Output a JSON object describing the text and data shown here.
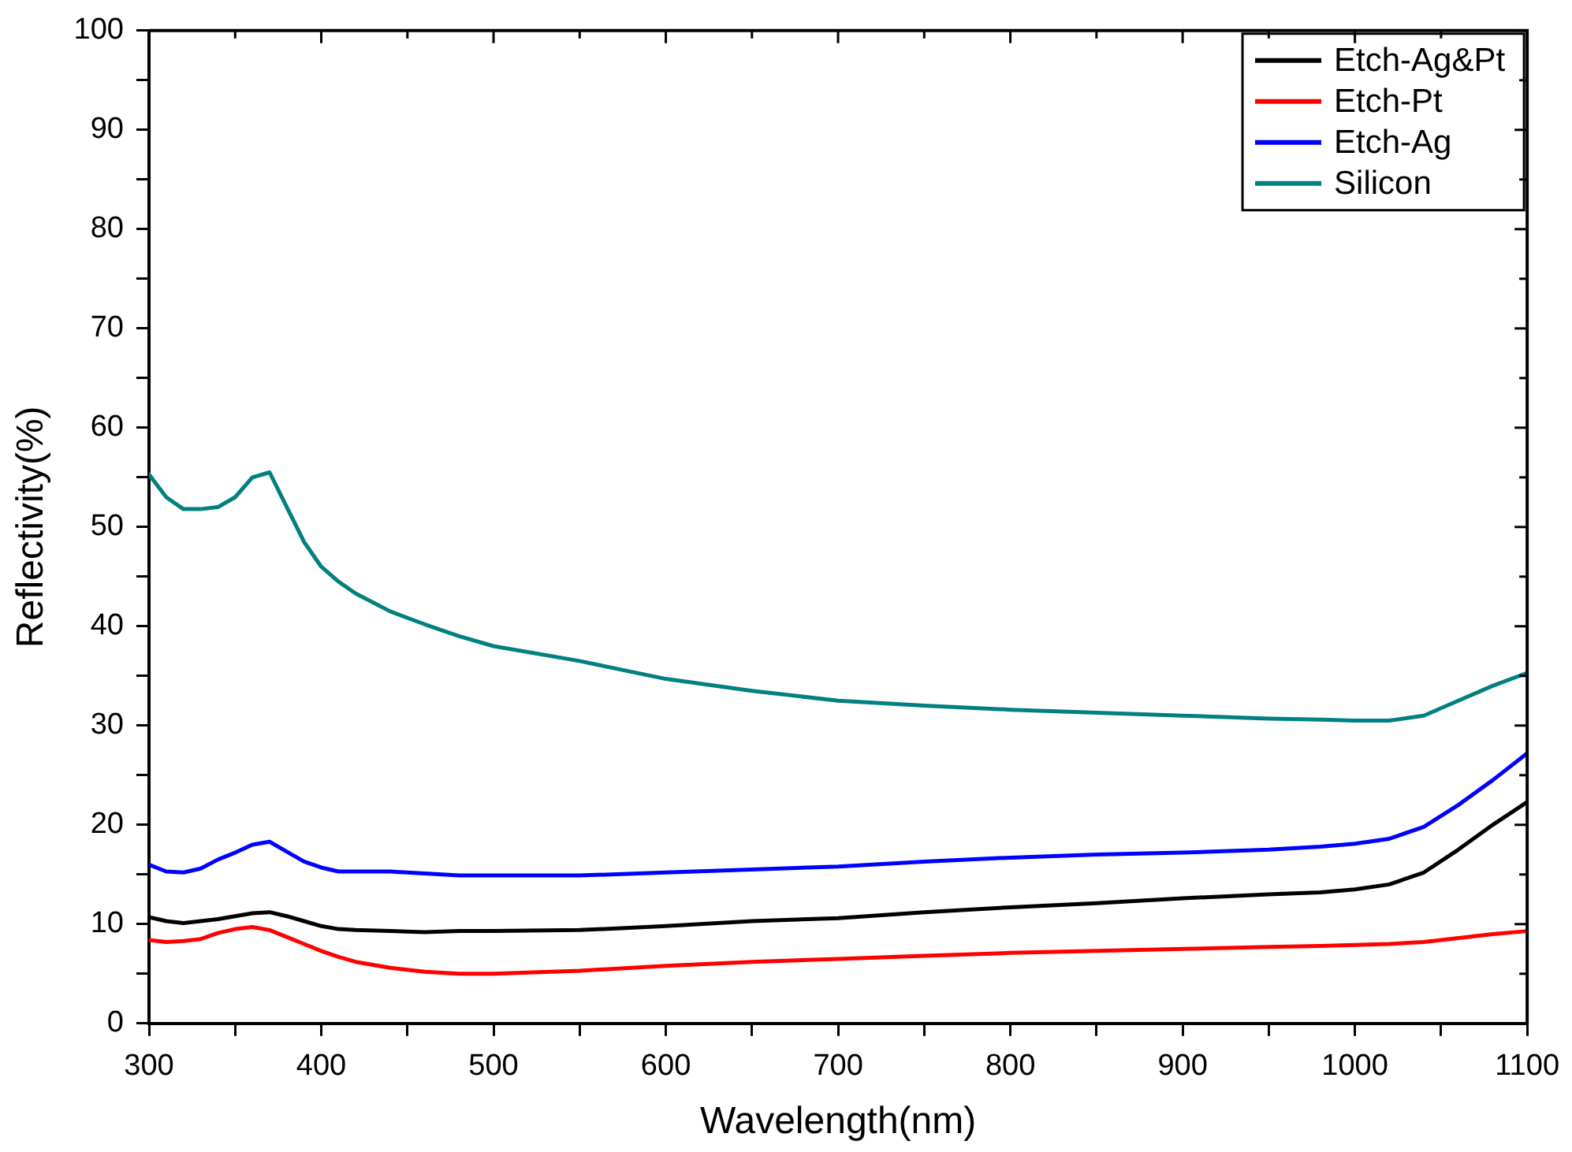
{
  "chart_data": {
    "type": "line",
    "xlabel": "Wavelength(nm)",
    "ylabel": "Reflectivity(%)",
    "x": [
      300,
      310,
      320,
      330,
      340,
      350,
      360,
      370,
      380,
      390,
      400,
      410,
      420,
      440,
      460,
      480,
      500,
      550,
      600,
      650,
      700,
      750,
      800,
      850,
      900,
      950,
      980,
      1000,
      1020,
      1040,
      1060,
      1080,
      1100
    ],
    "series": [
      {
        "name": "Etch-Ag&Pt",
        "color": "#000000",
        "values": [
          10.7,
          10.3,
          10.1,
          10.3,
          10.5,
          10.8,
          11.1,
          11.2,
          10.8,
          10.3,
          9.8,
          9.5,
          9.4,
          9.3,
          9.2,
          9.3,
          9.3,
          9.4,
          9.8,
          10.3,
          10.6,
          11.2,
          11.7,
          12.1,
          12.6,
          13,
          13.2,
          13.5,
          14,
          15.2,
          17.5,
          20,
          22.3
        ]
      },
      {
        "name": "Etch-Pt",
        "color": "#ff0000",
        "values": [
          8.4,
          8.2,
          8.3,
          8.5,
          9.1,
          9.5,
          9.7,
          9.4,
          8.7,
          8,
          7.3,
          6.7,
          6.2,
          5.6,
          5.2,
          5,
          5,
          5.3,
          5.8,
          6.2,
          6.5,
          6.8,
          7.1,
          7.3,
          7.5,
          7.7,
          7.8,
          7.9,
          8,
          8.2,
          8.6,
          9,
          9.3
        ]
      },
      {
        "name": "Etch-Ag",
        "color": "#0000ff",
        "values": [
          16,
          15.3,
          15.2,
          15.6,
          16.5,
          17.2,
          18,
          18.3,
          17.3,
          16.3,
          15.7,
          15.3,
          15.3,
          15.3,
          15.1,
          14.9,
          14.9,
          14.9,
          15.2,
          15.5,
          15.8,
          16.3,
          16.7,
          17,
          17.2,
          17.5,
          17.8,
          18.1,
          18.6,
          19.8,
          22,
          24.5,
          27.2
        ]
      },
      {
        "name": "Silicon",
        "color": "#008080",
        "values": [
          55.3,
          53,
          51.8,
          51.8,
          52,
          53,
          55,
          55.5,
          52,
          48.5,
          46,
          44.5,
          43.3,
          41.5,
          40.2,
          39,
          38,
          36.5,
          34.7,
          33.5,
          32.5,
          32,
          31.6,
          31.3,
          31,
          30.7,
          30.6,
          30.5,
          30.5,
          31,
          32.5,
          34,
          35.3
        ]
      }
    ],
    "xlim": [
      300,
      1100
    ],
    "xticks": [
      300,
      {
        "value": 350,
        "label": null
      },
      400,
      {
        "value": 450,
        "label": null
      },
      500,
      {
        "value": 550,
        "label": null
      },
      600,
      {
        "value": 650,
        "label": null
      },
      700,
      {
        "value": 750,
        "label": null
      },
      800,
      {
        "value": 850,
        "label": null
      },
      900,
      {
        "value": 950,
        "label": null
      },
      1000,
      {
        "value": 1050,
        "label": null
      },
      1100
    ],
    "ylim": [
      0,
      100
    ],
    "yticks": [
      0,
      {
        "value": 5,
        "label": null
      },
      10,
      {
        "value": 15,
        "label": null
      },
      20,
      {
        "value": 25,
        "label": null
      },
      30,
      {
        "value": 35,
        "label": null
      },
      40,
      {
        "value": 45,
        "label": null
      },
      50,
      {
        "value": 55,
        "label": null
      },
      60,
      {
        "value": 65,
        "label": null
      },
      70,
      {
        "value": 75,
        "label": null
      },
      80,
      {
        "value": 85,
        "label": null
      },
      90,
      {
        "value": 95,
        "label": null
      },
      100
    ],
    "grid": false,
    "legend": "top right",
    "marker": "none",
    "line_style": "solid"
  }
}
